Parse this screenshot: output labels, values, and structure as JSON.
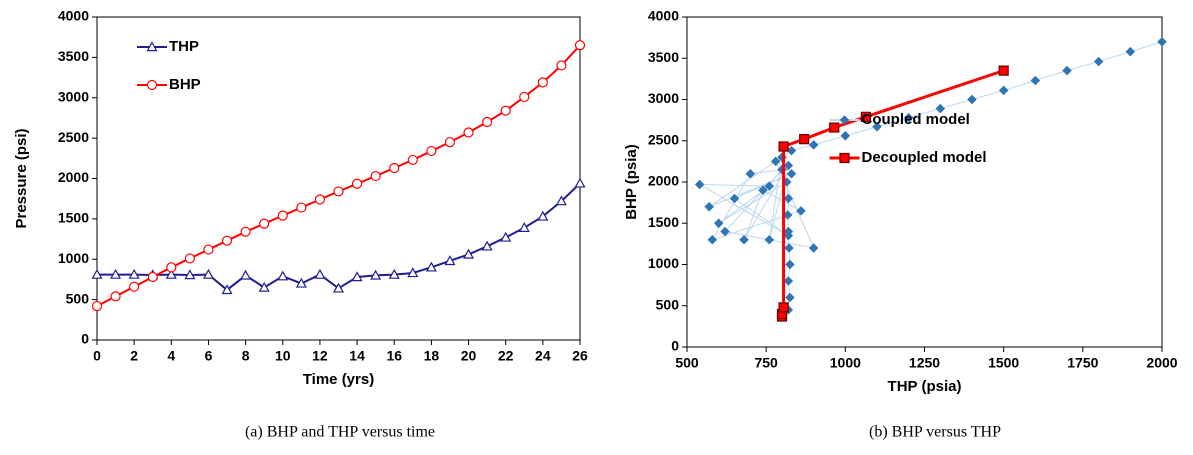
{
  "chart_data": [
    {
      "type": "line",
      "caption": "(a) BHP and THP versus time",
      "xlabel": "Time (yrs)",
      "ylabel": "Pressure (psi)",
      "x": [
        0,
        1,
        2,
        3,
        4,
        5,
        6,
        7,
        8,
        9,
        10,
        11,
        12,
        13,
        14,
        15,
        16,
        17,
        18,
        19,
        20,
        21,
        22,
        23,
        24,
        25,
        26
      ],
      "xlim": [
        0,
        26
      ],
      "xticks": [
        0,
        2,
        4,
        6,
        8,
        10,
        12,
        14,
        16,
        18,
        20,
        22,
        24,
        26
      ],
      "ylim": [
        0,
        4000
      ],
      "yticks": [
        0,
        500,
        1000,
        1500,
        2000,
        2500,
        3000,
        3500,
        4000
      ],
      "legend": "upper left",
      "series": [
        {
          "name": "THP",
          "color": "#1f1f8f",
          "marker": "triangle",
          "marker_fill": "#ffffff",
          "values": [
            810,
            810,
            810,
            805,
            810,
            805,
            810,
            620,
            800,
            650,
            790,
            700,
            810,
            640,
            780,
            800,
            810,
            830,
            900,
            980,
            1060,
            1160,
            1270,
            1390,
            1530,
            1720,
            1940
          ]
        },
        {
          "name": "BHP",
          "color": "#ff0000",
          "marker": "circle",
          "marker_fill": "#ffffff",
          "values": [
            420,
            540,
            660,
            780,
            900,
            1010,
            1120,
            1230,
            1340,
            1440,
            1540,
            1640,
            1740,
            1840,
            1935,
            2030,
            2130,
            2230,
            2340,
            2450,
            2570,
            2700,
            2840,
            3010,
            3190,
            3400,
            3650
          ]
        }
      ]
    },
    {
      "type": "line",
      "caption": "(b) BHP versus THP",
      "xlabel": "THP (psia)",
      "ylabel": "BHP (psia)",
      "xlim": [
        500,
        2000
      ],
      "xticks": [
        500,
        750,
        1000,
        1250,
        1500,
        1750,
        2000
      ],
      "ylim": [
        0,
        4000
      ],
      "yticks": [
        0,
        500,
        1000,
        1500,
        2000,
        2500,
        3000,
        3500,
        4000
      ],
      "legend": "center right",
      "series": [
        {
          "name": "Coupled model",
          "color": "#2e75b6",
          "line_color": "#bdd7ee",
          "marker": "diamond",
          "marker_fill": "#2e75b6",
          "x": [
            820,
            825,
            820,
            825,
            822,
            820,
            818,
            820,
            815,
            600,
            760,
            540,
            820,
            650,
            830,
            570,
            780,
            900,
            620,
            800,
            700,
            580,
            860,
            740,
            680,
            820,
            760,
            800,
            830,
            900,
            1000,
            1100,
            1200,
            1300,
            1400,
            1500,
            1600,
            1700,
            1800,
            1900,
            2000
          ],
          "values": [
            450,
            600,
            800,
            1000,
            1200,
            1400,
            1600,
            1800,
            2000,
            1500,
            1950,
            1970,
            1350,
            1800,
            2100,
            1700,
            2250,
            1200,
            1400,
            2150,
            2100,
            1300,
            1650,
            1900,
            1300,
            2200,
            1300,
            2300,
            2380,
            2450,
            2560,
            2670,
            2780,
            2890,
            3000,
            3110,
            3230,
            3350,
            3460,
            3580,
            3700
          ]
        },
        {
          "name": "Decoupled model",
          "color": "#ff0000",
          "marker": "square",
          "marker_fill": "#ff0000",
          "x": [
            800,
            800,
            805,
            805,
            870,
            965,
            1065,
            1500
          ],
          "values": [
            370,
            400,
            480,
            2430,
            2520,
            2660,
            2790,
            3350
          ]
        }
      ]
    }
  ]
}
